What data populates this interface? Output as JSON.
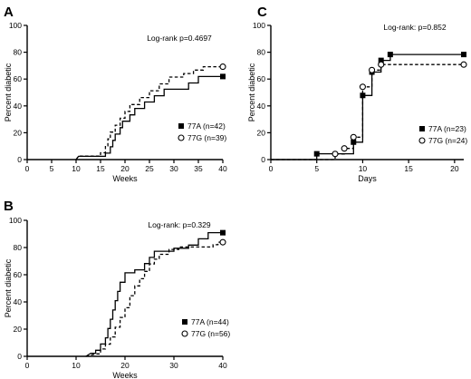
{
  "chart_data": [
    {
      "panel": "A",
      "type": "line",
      "xlabel": "Weeks",
      "ylabel": "Percent diabetic",
      "xlim": [
        0,
        40
      ],
      "ylim": [
        0,
        100
      ],
      "xticks": [
        0,
        5,
        10,
        15,
        20,
        25,
        30,
        35,
        40
      ],
      "yticks": [
        0,
        20,
        40,
        60,
        80,
        100
      ],
      "annotation": "Log-rank p=0.4697",
      "legend_position": "right",
      "series": [
        {
          "name": "77A (n=42)",
          "line_style": "solid",
          "marker": "filled-square",
          "points": [
            [
              10,
              0
            ],
            [
              10.5,
              2.4
            ],
            [
              16,
              2.4
            ],
            [
              16,
              4.8
            ],
            [
              17,
              4.8
            ],
            [
              17,
              9.5
            ],
            [
              17.5,
              9.5
            ],
            [
              17.5,
              14.3
            ],
            [
              18,
              14.3
            ],
            [
              18,
              19
            ],
            [
              19,
              19
            ],
            [
              19,
              23.8
            ],
            [
              19.5,
              23.8
            ],
            [
              19.5,
              28.6
            ],
            [
              21,
              28.6
            ],
            [
              21,
              33.3
            ],
            [
              22,
              33.3
            ],
            [
              22,
              38.1
            ],
            [
              24,
              38.1
            ],
            [
              24,
              42.9
            ],
            [
              26,
              42.9
            ],
            [
              26,
              47.6
            ],
            [
              28,
              47.6
            ],
            [
              28,
              52.4
            ],
            [
              33,
              52.4
            ],
            [
              33,
              57.1
            ],
            [
              35,
              57.1
            ],
            [
              35,
              61.9
            ],
            [
              40,
              61.9
            ]
          ]
        },
        {
          "name": "77G (n=39)",
          "line_style": "dashed",
          "marker": "open-circle",
          "points": [
            [
              10,
              0
            ],
            [
              10.5,
              2.6
            ],
            [
              15,
              2.6
            ],
            [
              15,
              5.1
            ],
            [
              16,
              5.1
            ],
            [
              16,
              10.3
            ],
            [
              16.5,
              10.3
            ],
            [
              16.5,
              15.4
            ],
            [
              17,
              15.4
            ],
            [
              17,
              20.5
            ],
            [
              18,
              20.5
            ],
            [
              18,
              25.6
            ],
            [
              19,
              25.6
            ],
            [
              19,
              30.8
            ],
            [
              20,
              30.8
            ],
            [
              20,
              35.9
            ],
            [
              21,
              35.9
            ],
            [
              21,
              41
            ],
            [
              23,
              41
            ],
            [
              23,
              46.2
            ],
            [
              25,
              46.2
            ],
            [
              25,
              51.3
            ],
            [
              27,
              51.3
            ],
            [
              27,
              56.4
            ],
            [
              29,
              56.4
            ],
            [
              29,
              61.5
            ],
            [
              32,
              61.5
            ],
            [
              32,
              64.1
            ],
            [
              34,
              64.1
            ],
            [
              34,
              66.7
            ],
            [
              36,
              66.7
            ],
            [
              36,
              69.2
            ],
            [
              40,
              69.2
            ]
          ]
        }
      ]
    },
    {
      "panel": "C",
      "type": "line",
      "xlabel": "Days",
      "ylabel": "Percent diabetic",
      "xlim": [
        0,
        21
      ],
      "ylim": [
        0,
        100
      ],
      "xticks": [
        0,
        5,
        10,
        15,
        20
      ],
      "yticks": [
        0,
        20,
        40,
        60,
        80,
        100
      ],
      "annotation": "Log-rank: p=0.852",
      "legend_position": "bottom-right",
      "series": [
        {
          "name": "77A (n=23)",
          "line_style": "solid",
          "marker": "filled-square",
          "points": [
            [
              0,
              0
            ],
            [
              5,
              0
            ],
            [
              5,
              4.3
            ],
            [
              9,
              4.3
            ],
            [
              9,
              13
            ],
            [
              10,
              13
            ],
            [
              10,
              47.8
            ],
            [
              11,
              47.8
            ],
            [
              11,
              65.2
            ],
            [
              12,
              65.2
            ],
            [
              12,
              73.9
            ],
            [
              13,
              73.9
            ],
            [
              13,
              78.3
            ],
            [
              21,
              78.3
            ]
          ],
          "markers": [
            [
              5,
              4.3
            ],
            [
              9,
              13
            ],
            [
              10,
              47.8
            ],
            [
              11,
              65.2
            ],
            [
              12,
              73.9
            ],
            [
              13,
              78.3
            ],
            [
              21,
              78.3
            ]
          ]
        },
        {
          "name": "77G (n=24)",
          "line_style": "dashed",
          "marker": "open-circle",
          "points": [
            [
              0,
              0
            ],
            [
              7,
              0
            ],
            [
              7,
              4.2
            ],
            [
              8,
              4.2
            ],
            [
              8,
              8.3
            ],
            [
              9,
              8.3
            ],
            [
              9,
              16.7
            ],
            [
              10,
              16.7
            ],
            [
              10,
              54.2
            ],
            [
              11,
              54.2
            ],
            [
              11,
              66.7
            ],
            [
              12,
              66.7
            ],
            [
              12,
              70.8
            ],
            [
              21,
              70.8
            ]
          ],
          "markers": [
            [
              7,
              4.2
            ],
            [
              8,
              8.3
            ],
            [
              9,
              16.7
            ],
            [
              10,
              54.2
            ],
            [
              11,
              66.7
            ],
            [
              12,
              70.8
            ],
            [
              21,
              70.8
            ]
          ]
        }
      ]
    },
    {
      "panel": "B",
      "type": "line",
      "xlabel": "Weeks",
      "ylabel": "Percent diabetic",
      "xlim": [
        0,
        40
      ],
      "ylim": [
        0,
        100
      ],
      "xticks": [
        0,
        10,
        20,
        30,
        40
      ],
      "yticks": [
        0,
        20,
        40,
        60,
        80,
        100
      ],
      "annotation": "Log-rank: p=0.329",
      "legend_position": "right",
      "series": [
        {
          "name": "77A (n=44)",
          "line_style": "solid",
          "marker": "filled-square",
          "points": [
            [
              12,
              0
            ],
            [
              13,
              2.3
            ],
            [
              14,
              2.3
            ],
            [
              14,
              4.5
            ],
            [
              15,
              4.5
            ],
            [
              15,
              9.1
            ],
            [
              16,
              9.1
            ],
            [
              16,
              13.6
            ],
            [
              16.5,
              13.6
            ],
            [
              16.5,
              20.5
            ],
            [
              17,
              20.5
            ],
            [
              17,
              27.3
            ],
            [
              17.5,
              27.3
            ],
            [
              17.5,
              34.1
            ],
            [
              18,
              34.1
            ],
            [
              18,
              40.9
            ],
            [
              18.5,
              40.9
            ],
            [
              18.5,
              47.7
            ],
            [
              19,
              47.7
            ],
            [
              19,
              54.5
            ],
            [
              20,
              54.5
            ],
            [
              20,
              61.4
            ],
            [
              22,
              61.4
            ],
            [
              22,
              63.6
            ],
            [
              24,
              63.6
            ],
            [
              24,
              68.2
            ],
            [
              25,
              68.2
            ],
            [
              25,
              72.7
            ],
            [
              26,
              72.7
            ],
            [
              26,
              77.3
            ],
            [
              30,
              77.3
            ],
            [
              30,
              79.5
            ],
            [
              33,
              79.5
            ],
            [
              33,
              81.8
            ],
            [
              35,
              81.8
            ],
            [
              35,
              86.4
            ],
            [
              37,
              86.4
            ],
            [
              37,
              90.9
            ],
            [
              40,
              90.9
            ]
          ]
        },
        {
          "name": "77G (n=56)",
          "line_style": "dashed",
          "marker": "open-circle",
          "points": [
            [
              12,
              0
            ],
            [
              14,
              1.8
            ],
            [
              15,
              1.8
            ],
            [
              15,
              5.4
            ],
            [
              16,
              5.4
            ],
            [
              16,
              8.9
            ],
            [
              17,
              8.9
            ],
            [
              17,
              14.3
            ],
            [
              18,
              14.3
            ],
            [
              18,
              21.4
            ],
            [
              19,
              21.4
            ],
            [
              19,
              28.6
            ],
            [
              20,
              28.6
            ],
            [
              20,
              35.7
            ],
            [
              21,
              35.7
            ],
            [
              21,
              44.6
            ],
            [
              22,
              44.6
            ],
            [
              22,
              51.8
            ],
            [
              23,
              51.8
            ],
            [
              23,
              57.1
            ],
            [
              24,
              57.1
            ],
            [
              24,
              62.5
            ],
            [
              25,
              62.5
            ],
            [
              25,
              67.9
            ],
            [
              26,
              67.9
            ],
            [
              26,
              71.4
            ],
            [
              27,
              71.4
            ],
            [
              27,
              75
            ],
            [
              29,
              75
            ],
            [
              29,
              78.6
            ],
            [
              31,
              78.6
            ],
            [
              31,
              80.4
            ],
            [
              38,
              80.4
            ],
            [
              38,
              82.1
            ],
            [
              39,
              82.1
            ],
            [
              39,
              83.9
            ],
            [
              40,
              83.9
            ]
          ]
        }
      ]
    }
  ]
}
